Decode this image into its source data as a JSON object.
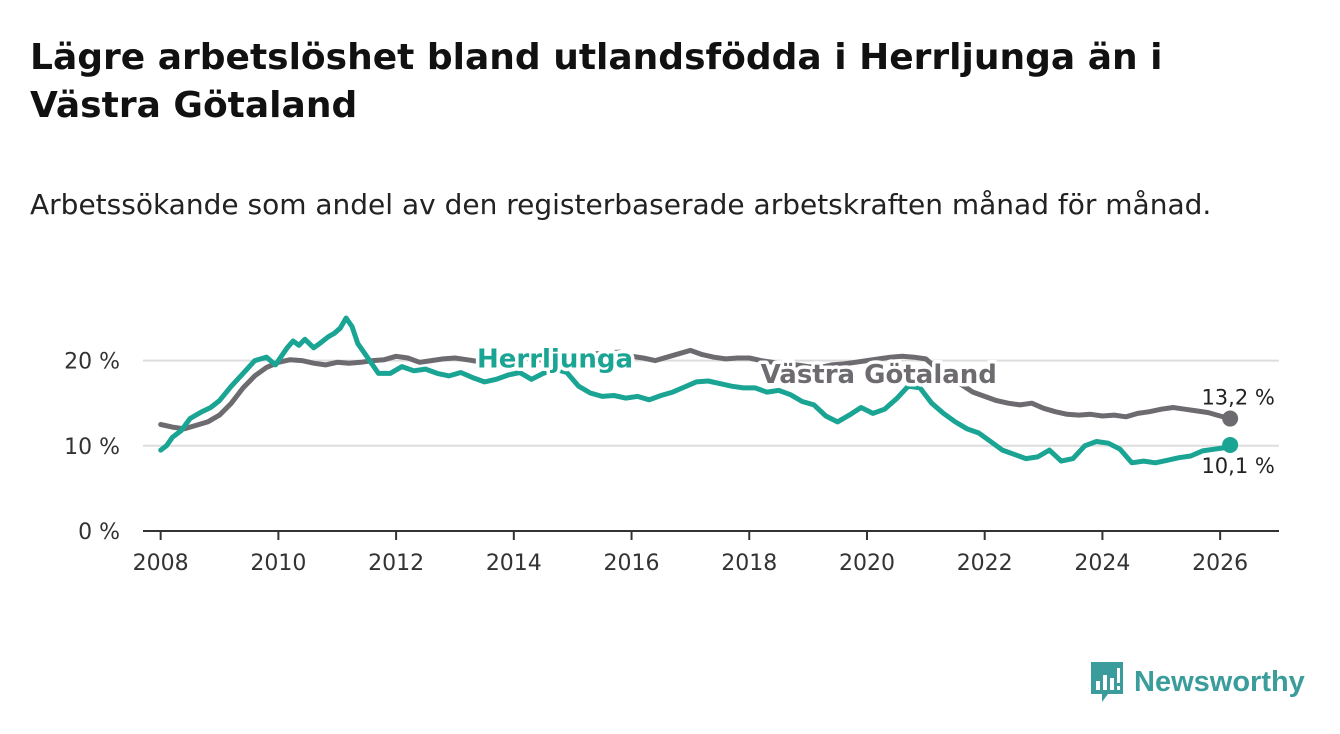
{
  "title": "Lägre arbetslöshet bland utlandsfödda i Herrljunga än i Västra Götaland",
  "subtitle": "Arbetssökande som andel av den registerbaserade arbetskraften månad för månad.",
  "brand": "Newsworthy",
  "colors": {
    "herrljunga": "#1aa493",
    "vastra_gotaland": "#6d6b70",
    "grid": "#dddddd",
    "axis": "#333333",
    "brand": "#3a9d9b"
  },
  "chart_data": {
    "type": "line",
    "title": "Lägre arbetslöshet bland utlandsfödda i Herrljunga än i Västra Götaland",
    "xlabel": "",
    "ylabel": "",
    "xlim": [
      2007.7,
      2027.0
    ],
    "ylim": [
      0,
      25
    ],
    "grid": true,
    "x_ticks": [
      2008,
      2010,
      2012,
      2014,
      2016,
      2018,
      2020,
      2022,
      2024,
      2026
    ],
    "x_tick_labels": [
      "2008",
      "2010",
      "2012",
      "2014",
      "2016",
      "2018",
      "2020",
      "2022",
      "2024",
      "2026"
    ],
    "y_ticks": [
      0,
      10,
      20
    ],
    "y_tick_labels": [
      "0 %",
      "10 %",
      "20 %"
    ],
    "series": [
      {
        "name": "Herrljunga",
        "end_label": "10,1 %",
        "x": [
          2008.0,
          2008.1,
          2008.2,
          2008.35,
          2008.5,
          2008.7,
          2008.85,
          2009.0,
          2009.2,
          2009.4,
          2009.6,
          2009.8,
          2009.95,
          2010.05,
          2010.15,
          2010.25,
          2010.35,
          2010.45,
          2010.6,
          2010.7,
          2010.85,
          2010.95,
          2011.05,
          2011.15,
          2011.25,
          2011.35,
          2011.5,
          2011.7,
          2011.9,
          2012.1,
          2012.3,
          2012.5,
          2012.7,
          2012.9,
          2013.1,
          2013.3,
          2013.5,
          2013.7,
          2013.9,
          2014.1,
          2014.3,
          2014.5,
          2014.7,
          2014.9,
          2015.1,
          2015.3,
          2015.5,
          2015.7,
          2015.9,
          2016.1,
          2016.3,
          2016.5,
          2016.7,
          2016.9,
          2017.1,
          2017.3,
          2017.5,
          2017.7,
          2017.9,
          2018.1,
          2018.3,
          2018.5,
          2018.7,
          2018.9,
          2019.1,
          2019.3,
          2019.5,
          2019.7,
          2019.9,
          2020.1,
          2020.3,
          2020.5,
          2020.7,
          2020.9,
          2021.1,
          2021.3,
          2021.5,
          2021.7,
          2021.9,
          2022.1,
          2022.3,
          2022.5,
          2022.7,
          2022.9,
          2023.1,
          2023.3,
          2023.5,
          2023.7,
          2023.9,
          2024.1,
          2024.3,
          2024.5,
          2024.7,
          2024.9,
          2025.1,
          2025.3,
          2025.5,
          2025.7,
          2025.9,
          2026.1,
          2026.17
        ],
        "values": [
          9.5,
          10.0,
          11.0,
          11.8,
          13.2,
          14.0,
          14.5,
          15.3,
          17.0,
          18.5,
          20.0,
          20.4,
          19.5,
          20.5,
          21.5,
          22.3,
          21.8,
          22.5,
          21.5,
          22.0,
          22.8,
          23.2,
          23.8,
          25.0,
          24.0,
          22.0,
          20.5,
          18.5,
          18.5,
          19.3,
          18.8,
          19.0,
          18.5,
          18.2,
          18.6,
          18.0,
          17.5,
          17.8,
          18.3,
          18.6,
          17.8,
          18.5,
          19.0,
          18.6,
          17.0,
          16.2,
          15.8,
          15.9,
          15.6,
          15.8,
          15.4,
          15.9,
          16.3,
          16.9,
          17.5,
          17.6,
          17.3,
          17.0,
          16.8,
          16.8,
          16.3,
          16.5,
          16.0,
          15.2,
          14.8,
          13.5,
          12.8,
          13.6,
          14.5,
          13.8,
          14.3,
          15.5,
          17.0,
          16.8,
          15.0,
          13.8,
          12.8,
          12.0,
          11.5,
          10.5,
          9.5,
          9.0,
          8.5,
          8.7,
          9.5,
          8.2,
          8.5,
          10.0,
          10.5,
          10.3,
          9.6,
          8.0,
          8.2,
          8.0,
          8.3,
          8.6,
          8.8,
          9.4,
          9.6,
          9.8,
          10.1
        ]
      },
      {
        "name": "Västra Götaland",
        "end_label": "13,2 %",
        "x": [
          2008.0,
          2008.2,
          2008.4,
          2008.6,
          2008.8,
          2009.0,
          2009.2,
          2009.4,
          2009.6,
          2009.8,
          2010.0,
          2010.2,
          2010.4,
          2010.6,
          2010.8,
          2011.0,
          2011.2,
          2011.4,
          2011.6,
          2011.8,
          2012.0,
          2012.2,
          2012.4,
          2012.6,
          2012.8,
          2013.0,
          2013.2,
          2013.4,
          2013.6,
          2013.8,
          2014.0,
          2014.2,
          2014.4,
          2014.6,
          2014.8,
          2015.0,
          2015.2,
          2015.4,
          2015.6,
          2015.8,
          2016.0,
          2016.2,
          2016.4,
          2016.6,
          2016.8,
          2017.0,
          2017.2,
          2017.4,
          2017.6,
          2017.8,
          2018.0,
          2018.2,
          2018.4,
          2018.6,
          2018.8,
          2019.0,
          2019.2,
          2019.4,
          2019.6,
          2019.8,
          2020.0,
          2020.2,
          2020.4,
          2020.6,
          2020.8,
          2021.0,
          2021.2,
          2021.4,
          2021.6,
          2021.8,
          2022.0,
          2022.2,
          2022.4,
          2022.6,
          2022.8,
          2023.0,
          2023.2,
          2023.4,
          2023.6,
          2023.8,
          2024.0,
          2024.2,
          2024.4,
          2024.6,
          2024.8,
          2025.0,
          2025.2,
          2025.4,
          2025.6,
          2025.8,
          2026.0,
          2026.17
        ],
        "values": [
          12.5,
          12.2,
          12.0,
          12.4,
          12.8,
          13.6,
          15.0,
          16.8,
          18.2,
          19.2,
          19.8,
          20.1,
          20.0,
          19.7,
          19.5,
          19.8,
          19.7,
          19.8,
          20.0,
          20.1,
          20.5,
          20.3,
          19.8,
          20.0,
          20.2,
          20.3,
          20.1,
          19.9,
          20.0,
          20.2,
          20.4,
          20.3,
          20.1,
          20.0,
          20.2,
          20.4,
          20.6,
          20.8,
          20.9,
          21.0,
          20.5,
          20.3,
          20.0,
          20.4,
          20.8,
          21.2,
          20.7,
          20.4,
          20.2,
          20.3,
          20.3,
          20.0,
          19.8,
          19.6,
          19.5,
          19.3,
          19.2,
          19.5,
          19.6,
          19.8,
          20.0,
          20.2,
          20.4,
          20.5,
          20.4,
          20.2,
          19.0,
          18.0,
          17.2,
          16.3,
          15.8,
          15.3,
          15.0,
          14.8,
          15.0,
          14.4,
          14.0,
          13.7,
          13.6,
          13.7,
          13.5,
          13.6,
          13.4,
          13.8,
          14.0,
          14.3,
          14.5,
          14.3,
          14.1,
          13.9,
          13.5,
          13.2
        ]
      }
    ]
  }
}
